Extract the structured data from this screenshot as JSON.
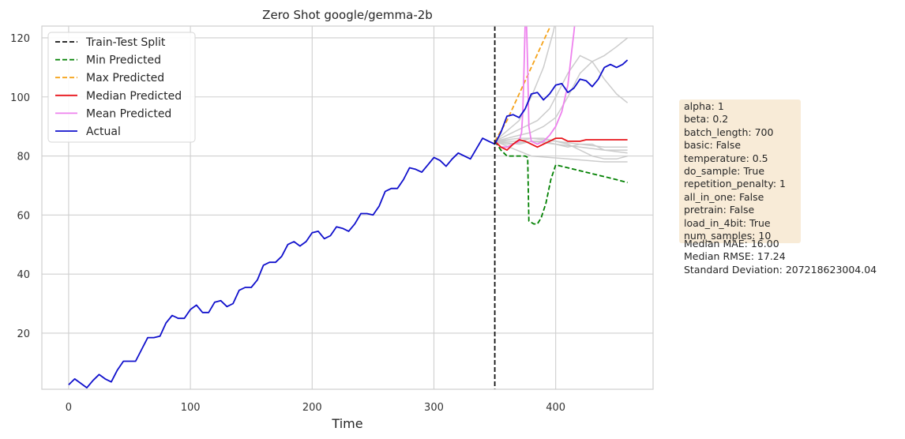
{
  "chart_data": {
    "type": "line",
    "title": "Zero Shot google/gemma-2b",
    "xlabel": "Time",
    "ylabel": "",
    "xlim": [
      -22,
      480
    ],
    "ylim": [
      1,
      124
    ],
    "xticks": [
      0,
      100,
      200,
      300,
      400
    ],
    "yticks": [
      20,
      40,
      60,
      80,
      100,
      120
    ],
    "grid": true,
    "legend_position": "upper-left",
    "split_x": 350,
    "legend": [
      {
        "label": "Train-Test Split",
        "color": "#111111",
        "style": "dashed"
      },
      {
        "label": "Min Predicted",
        "color": "#008000",
        "style": "dashed"
      },
      {
        "label": "Max Predicted",
        "color": "#f5a31a",
        "style": "dashed"
      },
      {
        "label": "Median Predicted",
        "color": "#e8151b",
        "style": "solid"
      },
      {
        "label": "Mean Predicted",
        "color": "#ee82ee",
        "style": "solid"
      },
      {
        "label": "Actual",
        "color": "#1010cc",
        "style": "solid"
      }
    ],
    "series": [
      {
        "name": "Actual",
        "color": "#1010cc",
        "x": [
          0,
          5,
          10,
          15,
          20,
          25,
          30,
          35,
          40,
          45,
          50,
          55,
          60,
          65,
          70,
          75,
          80,
          85,
          90,
          95,
          100,
          105,
          110,
          115,
          120,
          125,
          130,
          135,
          140,
          145,
          150,
          155,
          160,
          165,
          170,
          175,
          180,
          185,
          190,
          195,
          200,
          205,
          210,
          215,
          220,
          225,
          230,
          235,
          240,
          245,
          250,
          255,
          260,
          265,
          270,
          275,
          280,
          285,
          290,
          295,
          300,
          305,
          310,
          315,
          320,
          325,
          330,
          335,
          340,
          345,
          350,
          355,
          360,
          365,
          370,
          375,
          380,
          385,
          390,
          395,
          400,
          405,
          410,
          415,
          420,
          425,
          430,
          435,
          440,
          445,
          450,
          455,
          459
        ],
        "values": [
          2.5,
          4.5,
          3,
          1.5,
          4,
          6,
          4.5,
          3.5,
          7.5,
          10.5,
          10.5,
          10.5,
          14.5,
          18.5,
          18.5,
          19,
          23.5,
          26,
          25,
          25,
          28,
          29.5,
          27,
          27,
          30.5,
          31,
          29,
          30,
          34.5,
          35.5,
          35.5,
          38,
          43,
          44,
          44,
          46,
          50,
          51,
          49.5,
          51,
          54,
          54.5,
          52,
          53,
          56,
          55.5,
          54.5,
          57,
          60.5,
          60.5,
          60,
          63,
          68,
          69,
          69,
          72,
          76,
          75.5,
          74.5,
          77,
          79.5,
          78.5,
          76.5,
          79,
          81,
          80,
          79,
          82.5,
          86,
          85,
          84,
          88,
          93.5,
          94,
          93,
          96,
          101,
          101.5,
          99,
          101,
          104,
          104.5,
          101.5,
          103,
          106,
          105.5,
          103.5,
          106,
          110,
          111,
          110,
          111,
          112.5
        ]
      },
      {
        "name": "Median Predicted",
        "color": "#e8151b",
        "x": [
          350,
          355,
          360,
          365,
          370,
          375,
          380,
          385,
          390,
          395,
          400,
          405,
          410,
          415,
          420,
          425,
          430,
          435,
          440,
          445,
          450,
          455,
          459
        ],
        "values": [
          85,
          83,
          82,
          84,
          85.5,
          85,
          84,
          83,
          84,
          85,
          86,
          86,
          85,
          85,
          85,
          85.5,
          85.5,
          85.5,
          85.5,
          85.5,
          85.5,
          85.5,
          85.5
        ]
      },
      {
        "name": "Min Predicted",
        "color": "#008000",
        "x": [
          350,
          355,
          360,
          365,
          370,
          375,
          377,
          378,
          382,
          385,
          388,
          392,
          396,
          400,
          410,
          420,
          430,
          440,
          450,
          459
        ],
        "values": [
          85,
          82,
          80,
          80,
          80,
          80,
          79.5,
          58,
          57,
          57,
          59,
          64,
          72,
          77,
          76,
          75,
          74,
          73,
          72,
          71
        ]
      },
      {
        "name": "Max Predicted",
        "color": "#f5a31a",
        "x": [
          350,
          360,
          370,
          380,
          390,
          398
        ],
        "values": [
          85,
          92,
          101,
          110,
          119,
          126
        ]
      },
      {
        "name": "Mean Predicted",
        "color": "#ee82ee",
        "x": [
          350,
          355,
          360,
          365,
          370,
          372,
          373,
          374,
          375,
          376,
          377,
          378,
          380,
          385,
          390,
          395,
          400,
          405,
          410,
          413,
          415,
          416
        ],
        "values": [
          85,
          83,
          83,
          84,
          85,
          88,
          95,
          110,
          126,
          126,
          110,
          90,
          85,
          84,
          85,
          87,
          90,
          95,
          104,
          115,
          122,
          126
        ]
      },
      {
        "name": "sample-1",
        "color": "#cccccc",
        "x": [
          350,
          380,
          410,
          440,
          459
        ],
        "values": [
          85,
          80,
          79,
          78,
          78
        ]
      },
      {
        "name": "sample-2",
        "color": "#cccccc",
        "x": [
          350,
          360,
          380,
          400,
          420,
          440,
          459
        ],
        "values": [
          85,
          84,
          85,
          84,
          83,
          82,
          82
        ]
      },
      {
        "name": "sample-3",
        "color": "#cccccc",
        "x": [
          350,
          370,
          380,
          400,
          420,
          440,
          459
        ],
        "values": [
          85,
          86,
          86,
          85,
          84,
          83,
          83
        ]
      },
      {
        "name": "sample-4",
        "color": "#cccccc",
        "x": [
          350,
          370,
          380,
          390,
          400,
          410,
          420,
          430,
          440,
          450,
          459
        ],
        "values": [
          85,
          87,
          88,
          90,
          93,
          100,
          108,
          112,
          114,
          117,
          120
        ]
      },
      {
        "name": "sample-5",
        "color": "#cccccc",
        "x": [
          350,
          365,
          375,
          385,
          395,
          400,
          410,
          420,
          430,
          440,
          450,
          459
        ],
        "values": [
          85,
          88,
          90,
          92,
          96,
          100,
          108,
          114,
          112,
          106,
          101,
          98
        ]
      },
      {
        "name": "sample-6",
        "color": "#cccccc",
        "x": [
          350,
          370,
          380,
          385,
          390,
          394,
          398,
          400
        ],
        "values": [
          85,
          92,
          100,
          105,
          110,
          116,
          122,
          126
        ]
      },
      {
        "name": "sample-7",
        "color": "#cccccc",
        "x": [
          350,
          370,
          380,
          390,
          400,
          410,
          420,
          430,
          440,
          450,
          459
        ],
        "values": [
          85,
          85,
          86,
          86,
          85,
          84,
          82,
          80,
          79,
          79,
          80
        ]
      },
      {
        "name": "sample-8",
        "color": "#cccccc",
        "x": [
          350,
          370,
          380,
          390,
          400,
          410,
          420,
          430,
          440,
          459
        ],
        "values": [
          85,
          84,
          85,
          85,
          84,
          83,
          84,
          84,
          82,
          81
        ]
      }
    ]
  },
  "params_box": {
    "lines": [
      "alpha: 1",
      "beta: 0.2",
      "batch_length: 700",
      "basic: False",
      "temperature: 0.5",
      "do_sample: True",
      "repetition_penalty: 1",
      "all_in_one: False",
      "pretrain: False",
      "load_in_4bit: True",
      "num_samples: 10"
    ]
  },
  "metrics": {
    "median_mae": "Median MAE: 16.00",
    "median_rmse": "Median RMSE: 17.24",
    "std_dev": "Standard Deviation: 207218623004.04"
  }
}
